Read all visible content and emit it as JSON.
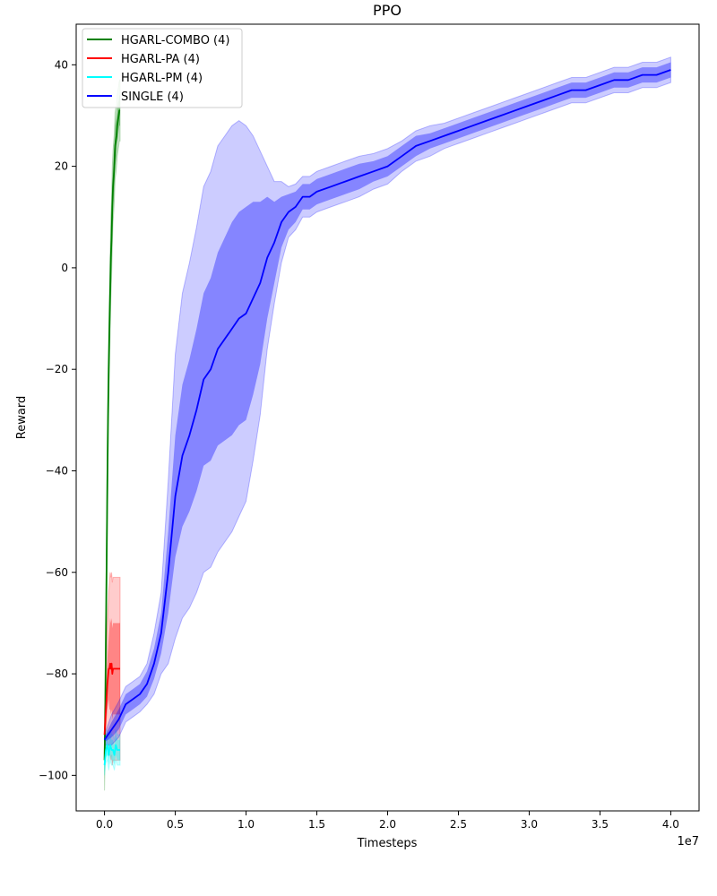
{
  "chart_data": {
    "type": "line",
    "title": "PPO",
    "xlabel": "Timesteps",
    "ylabel": "Reward",
    "x_offset_label": "1e7",
    "xlim": [
      -0.2,
      4.2
    ],
    "ylim": [
      -107,
      48
    ],
    "x_ticks": [
      0.0,
      0.5,
      1.0,
      1.5,
      2.0,
      2.5,
      3.0,
      3.5,
      4.0
    ],
    "x_tick_labels": [
      "0.0",
      "0.5",
      "1.0",
      "1.5",
      "2.0",
      "2.5",
      "3.0",
      "3.5",
      "4.0"
    ],
    "y_ticks": [
      -100,
      -80,
      -60,
      -40,
      -20,
      0,
      20,
      40
    ],
    "y_tick_labels": [
      "−100",
      "−80",
      "−60",
      "−40",
      "−20",
      "0",
      "20",
      "40"
    ],
    "grid": false,
    "legend_position": "top-left",
    "series": [
      {
        "name": "HGARL-COMBO (4)",
        "color": "#008000",
        "x": [
          0.0,
          0.005,
          0.01,
          0.015,
          0.02,
          0.025,
          0.03,
          0.035,
          0.04,
          0.045,
          0.05,
          0.055,
          0.06,
          0.065,
          0.07,
          0.075,
          0.08,
          0.085,
          0.09,
          0.095,
          0.1,
          0.105,
          0.11
        ],
        "y": [
          -97,
          -88,
          -72,
          -58,
          -42,
          -30,
          -20,
          -12,
          -5,
          2,
          6,
          12,
          16,
          18,
          20,
          24,
          25,
          26,
          28,
          29,
          30,
          31,
          31
        ],
        "inner": [
          4,
          4.5,
          5,
          5,
          5,
          5,
          5,
          5,
          5,
          5,
          5,
          5,
          4.5,
          4.5,
          4,
          4,
          4,
          4,
          3.5,
          3.5,
          3,
          3,
          3
        ],
        "outer": [
          6,
          7,
          8,
          8,
          8,
          8,
          8,
          8,
          8,
          8,
          8,
          8,
          7,
          7,
          6.5,
          6.5,
          6.5,
          6,
          6,
          6,
          6,
          6,
          6
        ]
      },
      {
        "name": "HGARL-PA (4)",
        "color": "#ff0000",
        "x": [
          0.0,
          0.01,
          0.02,
          0.03,
          0.035,
          0.04,
          0.045,
          0.05,
          0.055,
          0.06,
          0.07,
          0.08,
          0.09,
          0.1,
          0.11
        ],
        "y": [
          -92,
          -87,
          -82,
          -79,
          -79,
          -78,
          -79,
          -78,
          -80,
          -79,
          -79,
          -79,
          -79,
          -79,
          -79
        ],
        "inner": [
          2,
          4,
          5,
          6,
          8,
          9,
          9,
          9,
          9,
          9,
          9,
          9,
          9,
          9,
          9
        ],
        "outer": [
          4,
          8,
          12,
          15,
          17,
          18,
          18,
          18,
          18,
          18,
          18,
          18,
          18,
          18,
          18
        ]
      },
      {
        "name": "HGARL-PM (4)",
        "color": "#00ffff",
        "x": [
          0.0,
          0.01,
          0.02,
          0.03,
          0.04,
          0.05,
          0.06,
          0.07,
          0.08,
          0.09,
          0.1,
          0.11
        ],
        "y": [
          -98,
          -95,
          -94,
          -96,
          -94,
          -95,
          -95,
          -96,
          -94,
          -95,
          -95,
          -95
        ],
        "inner": [
          1,
          1.5,
          2,
          2,
          2,
          2,
          2,
          2,
          2,
          2,
          2,
          2
        ],
        "outer": [
          2,
          2.5,
          3,
          3,
          3,
          3,
          3,
          3,
          3,
          3,
          3,
          3
        ]
      },
      {
        "name": "SINGLE (4)",
        "color": "#0000ff",
        "x": [
          0.0,
          0.05,
          0.1,
          0.15,
          0.2,
          0.25,
          0.3,
          0.35,
          0.4,
          0.45,
          0.5,
          0.55,
          0.6,
          0.65,
          0.7,
          0.75,
          0.8,
          0.85,
          0.9,
          0.95,
          1.0,
          1.05,
          1.1,
          1.15,
          1.2,
          1.25,
          1.3,
          1.35,
          1.4,
          1.45,
          1.5,
          1.6,
          1.7,
          1.8,
          1.9,
          2.0,
          2.1,
          2.2,
          2.3,
          2.4,
          2.5,
          2.6,
          2.7,
          2.8,
          2.9,
          3.0,
          3.1,
          3.2,
          3.3,
          3.4,
          3.5,
          3.6,
          3.7,
          3.8,
          3.9,
          4.0
        ],
        "y": [
          -93,
          -91,
          -89,
          -86,
          -85,
          -84,
          -82,
          -78,
          -72,
          -60,
          -45,
          -37,
          -33,
          -28,
          -22,
          -20,
          -16,
          -14,
          -12,
          -10,
          -9,
          -6,
          -3,
          2,
          5,
          9,
          11,
          12,
          14,
          14,
          15,
          16,
          17,
          18,
          19,
          20,
          22,
          24,
          25,
          26,
          27,
          28,
          29,
          30,
          31,
          32,
          33,
          34,
          35,
          35,
          36,
          37,
          37,
          38,
          38,
          39
        ],
        "inner": [
          0.5,
          1.5,
          2,
          2,
          2,
          2,
          2.5,
          3,
          4,
          8,
          12,
          14,
          15,
          16,
          17,
          18,
          19,
          20,
          21,
          21,
          21,
          19,
          16,
          12,
          8,
          5,
          3.5,
          3,
          2.5,
          2.5,
          2.5,
          2.5,
          2.5,
          2.5,
          2,
          2,
          2,
          2,
          1.5,
          1.5,
          1.5,
          1.5,
          1.5,
          1.5,
          1.5,
          1.5,
          1.5,
          1.5,
          1.5,
          1.5,
          1.5,
          1.5,
          1.5,
          1.5,
          1.5,
          1.5
        ],
        "outer": [
          1,
          3,
          3.5,
          3.5,
          3.5,
          3.5,
          4,
          6,
          8,
          18,
          28,
          32,
          34,
          36,
          38,
          39,
          40,
          40,
          40,
          39,
          37,
          32,
          26,
          18,
          12,
          8,
          5,
          4.5,
          4,
          4,
          4,
          4,
          4,
          4,
          3.5,
          3.5,
          3,
          3,
          3,
          2.5,
          2.5,
          2.5,
          2.5,
          2.5,
          2.5,
          2.5,
          2.5,
          2.5,
          2.5,
          2.5,
          2.5,
          2.5,
          2.5,
          2.5,
          2.5,
          2.5
        ]
      }
    ]
  }
}
